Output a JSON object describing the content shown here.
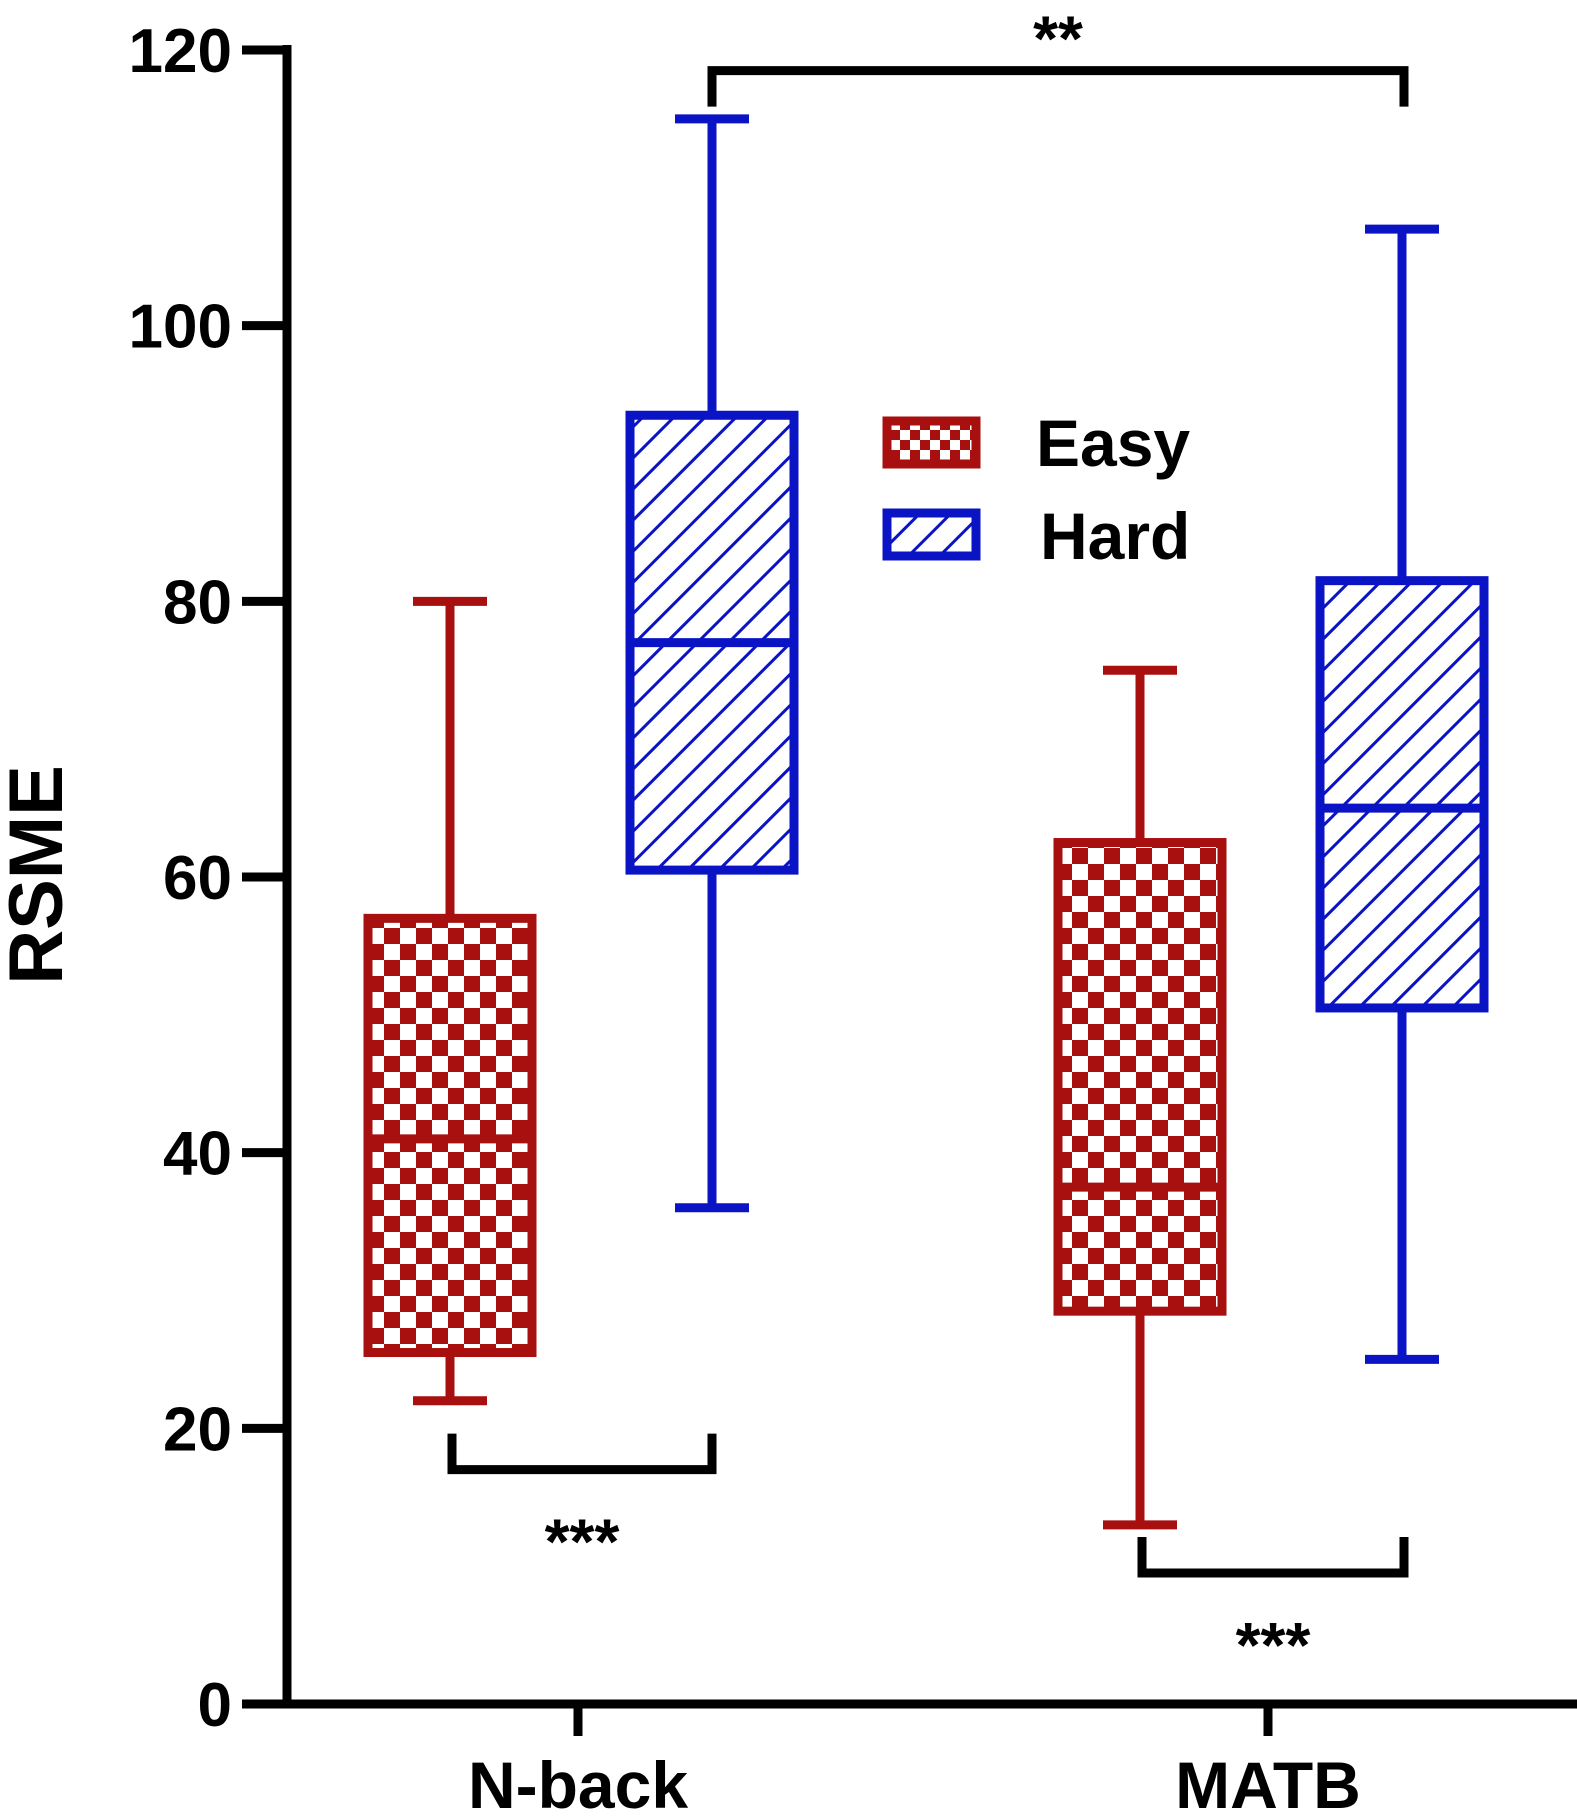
{
  "chart_data": {
    "type": "box",
    "ylabel": "RSME",
    "xlabel": "",
    "ylim": [
      0,
      120
    ],
    "yticks": [
      0,
      20,
      40,
      60,
      80,
      100,
      120
    ],
    "categories": [
      "N-back",
      "MATB"
    ],
    "legend_position": "top-center",
    "series": [
      {
        "name": "Easy",
        "color": "#a80f0f",
        "pattern": "checkerboard",
        "boxes": [
          {
            "category": "N-back",
            "min": 22,
            "q1": 25.5,
            "median": 41,
            "q3": 57,
            "max": 80
          },
          {
            "category": "MATB",
            "min": 13,
            "q1": 28.5,
            "median": 37.5,
            "q3": 62.5,
            "max": 75
          }
        ]
      },
      {
        "name": "Hard",
        "color": "#0a14c4",
        "pattern": "diagonal-hatch",
        "boxes": [
          {
            "category": "N-back",
            "min": 36,
            "q1": 60.5,
            "median": 77,
            "q3": 93.5,
            "max": 115
          },
          {
            "category": "MATB",
            "min": 25,
            "q1": 50.5,
            "median": 65,
            "q3": 81.5,
            "max": 107
          }
        ]
      }
    ],
    "significance": [
      {
        "label": "***",
        "from": "N-back Easy",
        "to": "N-back Hard",
        "y": 17,
        "side": "below"
      },
      {
        "label": "***",
        "from": "MATB Easy",
        "to": "MATB Hard",
        "y": 9.5,
        "side": "below"
      },
      {
        "label": "**",
        "from": "N-back Hard",
        "to": "MATB Hard",
        "y": 118.5,
        "side": "above"
      }
    ]
  }
}
